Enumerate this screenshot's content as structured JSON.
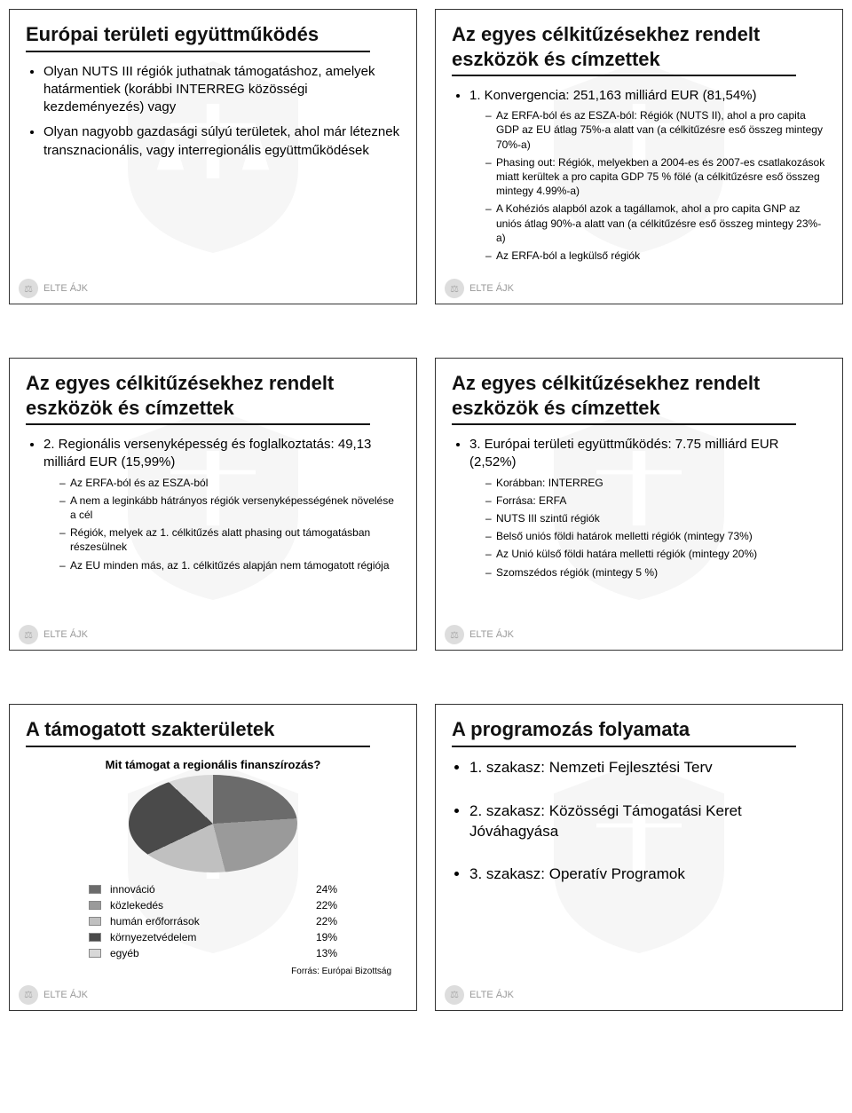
{
  "logo_text": "ELTE ÁJK",
  "slides": {
    "s1": {
      "title": "Európai területi együttműködés",
      "b1": "Olyan NUTS III régiók juthatnak támogatáshoz, amelyek határmentiek (korábbi INTERREG közösségi kezdeményezés) vagy",
      "b2": "Olyan nagyobb gazdasági súlyú területek, ahol már léteznek transznacionális, vagy interregionális együttműködések"
    },
    "s2": {
      "title": "Az egyes célkitűzésekhez rendelt eszközök és címzettek",
      "b1": "1. Konvergencia: 251,163 milliárd EUR (81,54%)",
      "sub1": "Az ERFA-ból és az ESZA-ból: Régiók (NUTS II), ahol a pro capita GDP az EU átlag 75%-a alatt van (a célkitűzésre eső összeg mintegy 70%-a)",
      "sub2": "Phasing out: Régiók, melyekben a 2004-es és 2007-es csatlakozások miatt kerültek a pro capita GDP 75 % fölé (a célkitűzésre eső összeg mintegy 4.99%-a)",
      "sub3": "A Kohéziós alapból azok a tagállamok, ahol a pro capita GNP az uniós átlag 90%-a alatt van (a célkitűzésre eső összeg mintegy 23%-a)",
      "sub4": "Az ERFA-ból a legkülső régiók"
    },
    "s3": {
      "title": "Az egyes célkitűzésekhez rendelt eszközök és címzettek",
      "b1": "2. Regionális versenyképesség és foglalkoztatás: 49,13 milliárd EUR (15,99%)",
      "sub1": "Az ERFA-ból és az ESZA-ból",
      "sub2": "A nem a leginkább hátrányos régiók versenyképességének növelése a cél",
      "sub3": "Régiók, melyek az 1. célkitűzés alatt phasing out támogatásban részesülnek",
      "sub4": "Az EU minden más, az 1. célkitűzés alapján nem támogatott régiója"
    },
    "s4": {
      "title": "Az egyes célkitűzésekhez rendelt eszközök és címzettek",
      "b1": "3. Európai területi együttműködés: 7.75 milliárd EUR (2,52%)",
      "sub1": "Korábban: INTERREG",
      "sub2": "Forrása: ERFA",
      "sub3": "NUTS III szintű régiók",
      "sub4": "Belső uniós földi határok melletti régiók (mintegy 73%)",
      "sub5": "Az Unió külső földi határa melletti régiók (mintegy 20%)",
      "sub6": "Szomszédos régiók (mintegy 5 %)"
    },
    "s5": {
      "title": "A támogatott szakterületek",
      "chart_title": "Mit támogat a regionális finanszírozás?",
      "source": "Forrás: Európai Bizottság",
      "legend": [
        {
          "label": "innováció",
          "value": "24%",
          "color": "#6b6b6b"
        },
        {
          "label": "közlekedés",
          "value": "22%",
          "color": "#9a9a9a"
        },
        {
          "label": "humán erőforrások",
          "value": "22%",
          "color": "#c0c0c0"
        },
        {
          "label": "környezetvédelem",
          "value": "19%",
          "color": "#4a4a4a"
        },
        {
          "label": "egyéb",
          "value": "13%",
          "color": "#d8d8d8"
        }
      ],
      "pie_gradient": "conic-gradient(#6b6b6b 0% 24%, #9a9a9a 24% 46%, #c0c0c0 46% 68%, #4a4a4a 68% 87%, #d8d8d8 87% 100%)"
    },
    "s6": {
      "title": "A programozás folyamata",
      "b1": "1. szakasz: Nemzeti Fejlesztési Terv",
      "b2": "2. szakasz: Közösségi Támogatási Keret Jóváhagyása",
      "b3": "3. szakasz: Operatív Programok"
    }
  }
}
